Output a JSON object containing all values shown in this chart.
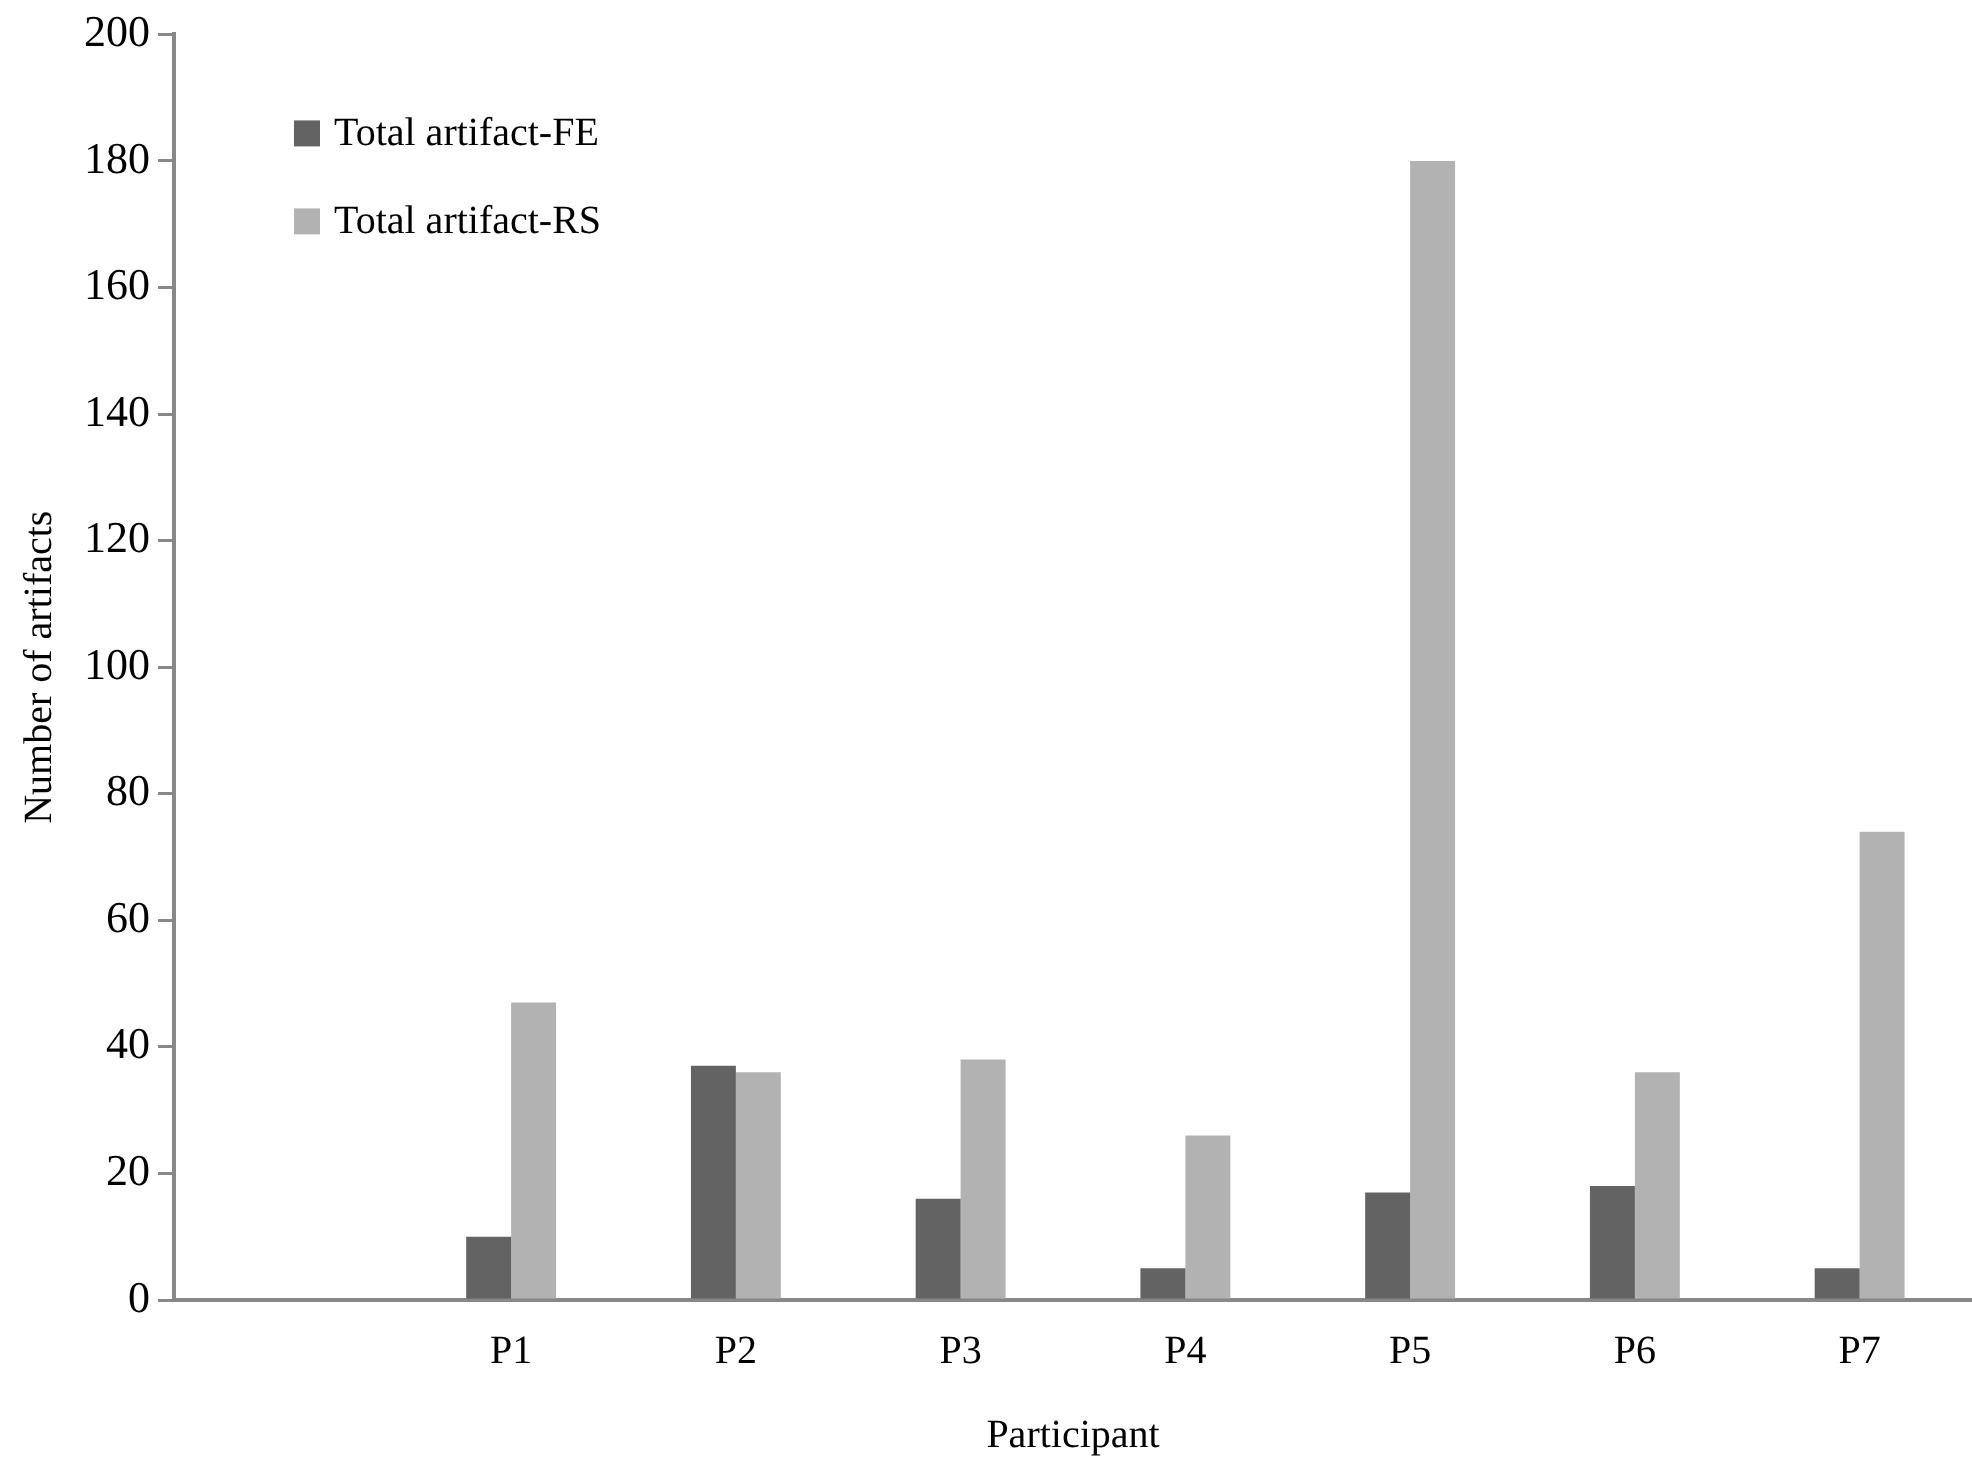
{
  "chart_data": {
    "type": "bar",
    "xlabel": "Participant",
    "ylabel": "Number of artifacts",
    "categories": [
      null,
      "P1",
      "P2",
      "P3",
      "P4",
      "P5",
      "P6",
      "P7"
    ],
    "series": [
      {
        "name": "Total artifact-FE",
        "color": "#636363",
        "values": [
          null,
          10,
          37,
          16,
          5,
          17,
          18,
          5
        ]
      },
      {
        "name": "Total artifact-RS",
        "color": "#b2b2b2",
        "values": [
          null,
          47,
          36,
          38,
          26,
          180,
          36,
          74
        ]
      }
    ],
    "ylim": [
      0,
      200
    ],
    "yticks": [
      0,
      20,
      40,
      60,
      80,
      100,
      120,
      140,
      160,
      180,
      200
    ],
    "grid": false,
    "legend": "top left"
  }
}
